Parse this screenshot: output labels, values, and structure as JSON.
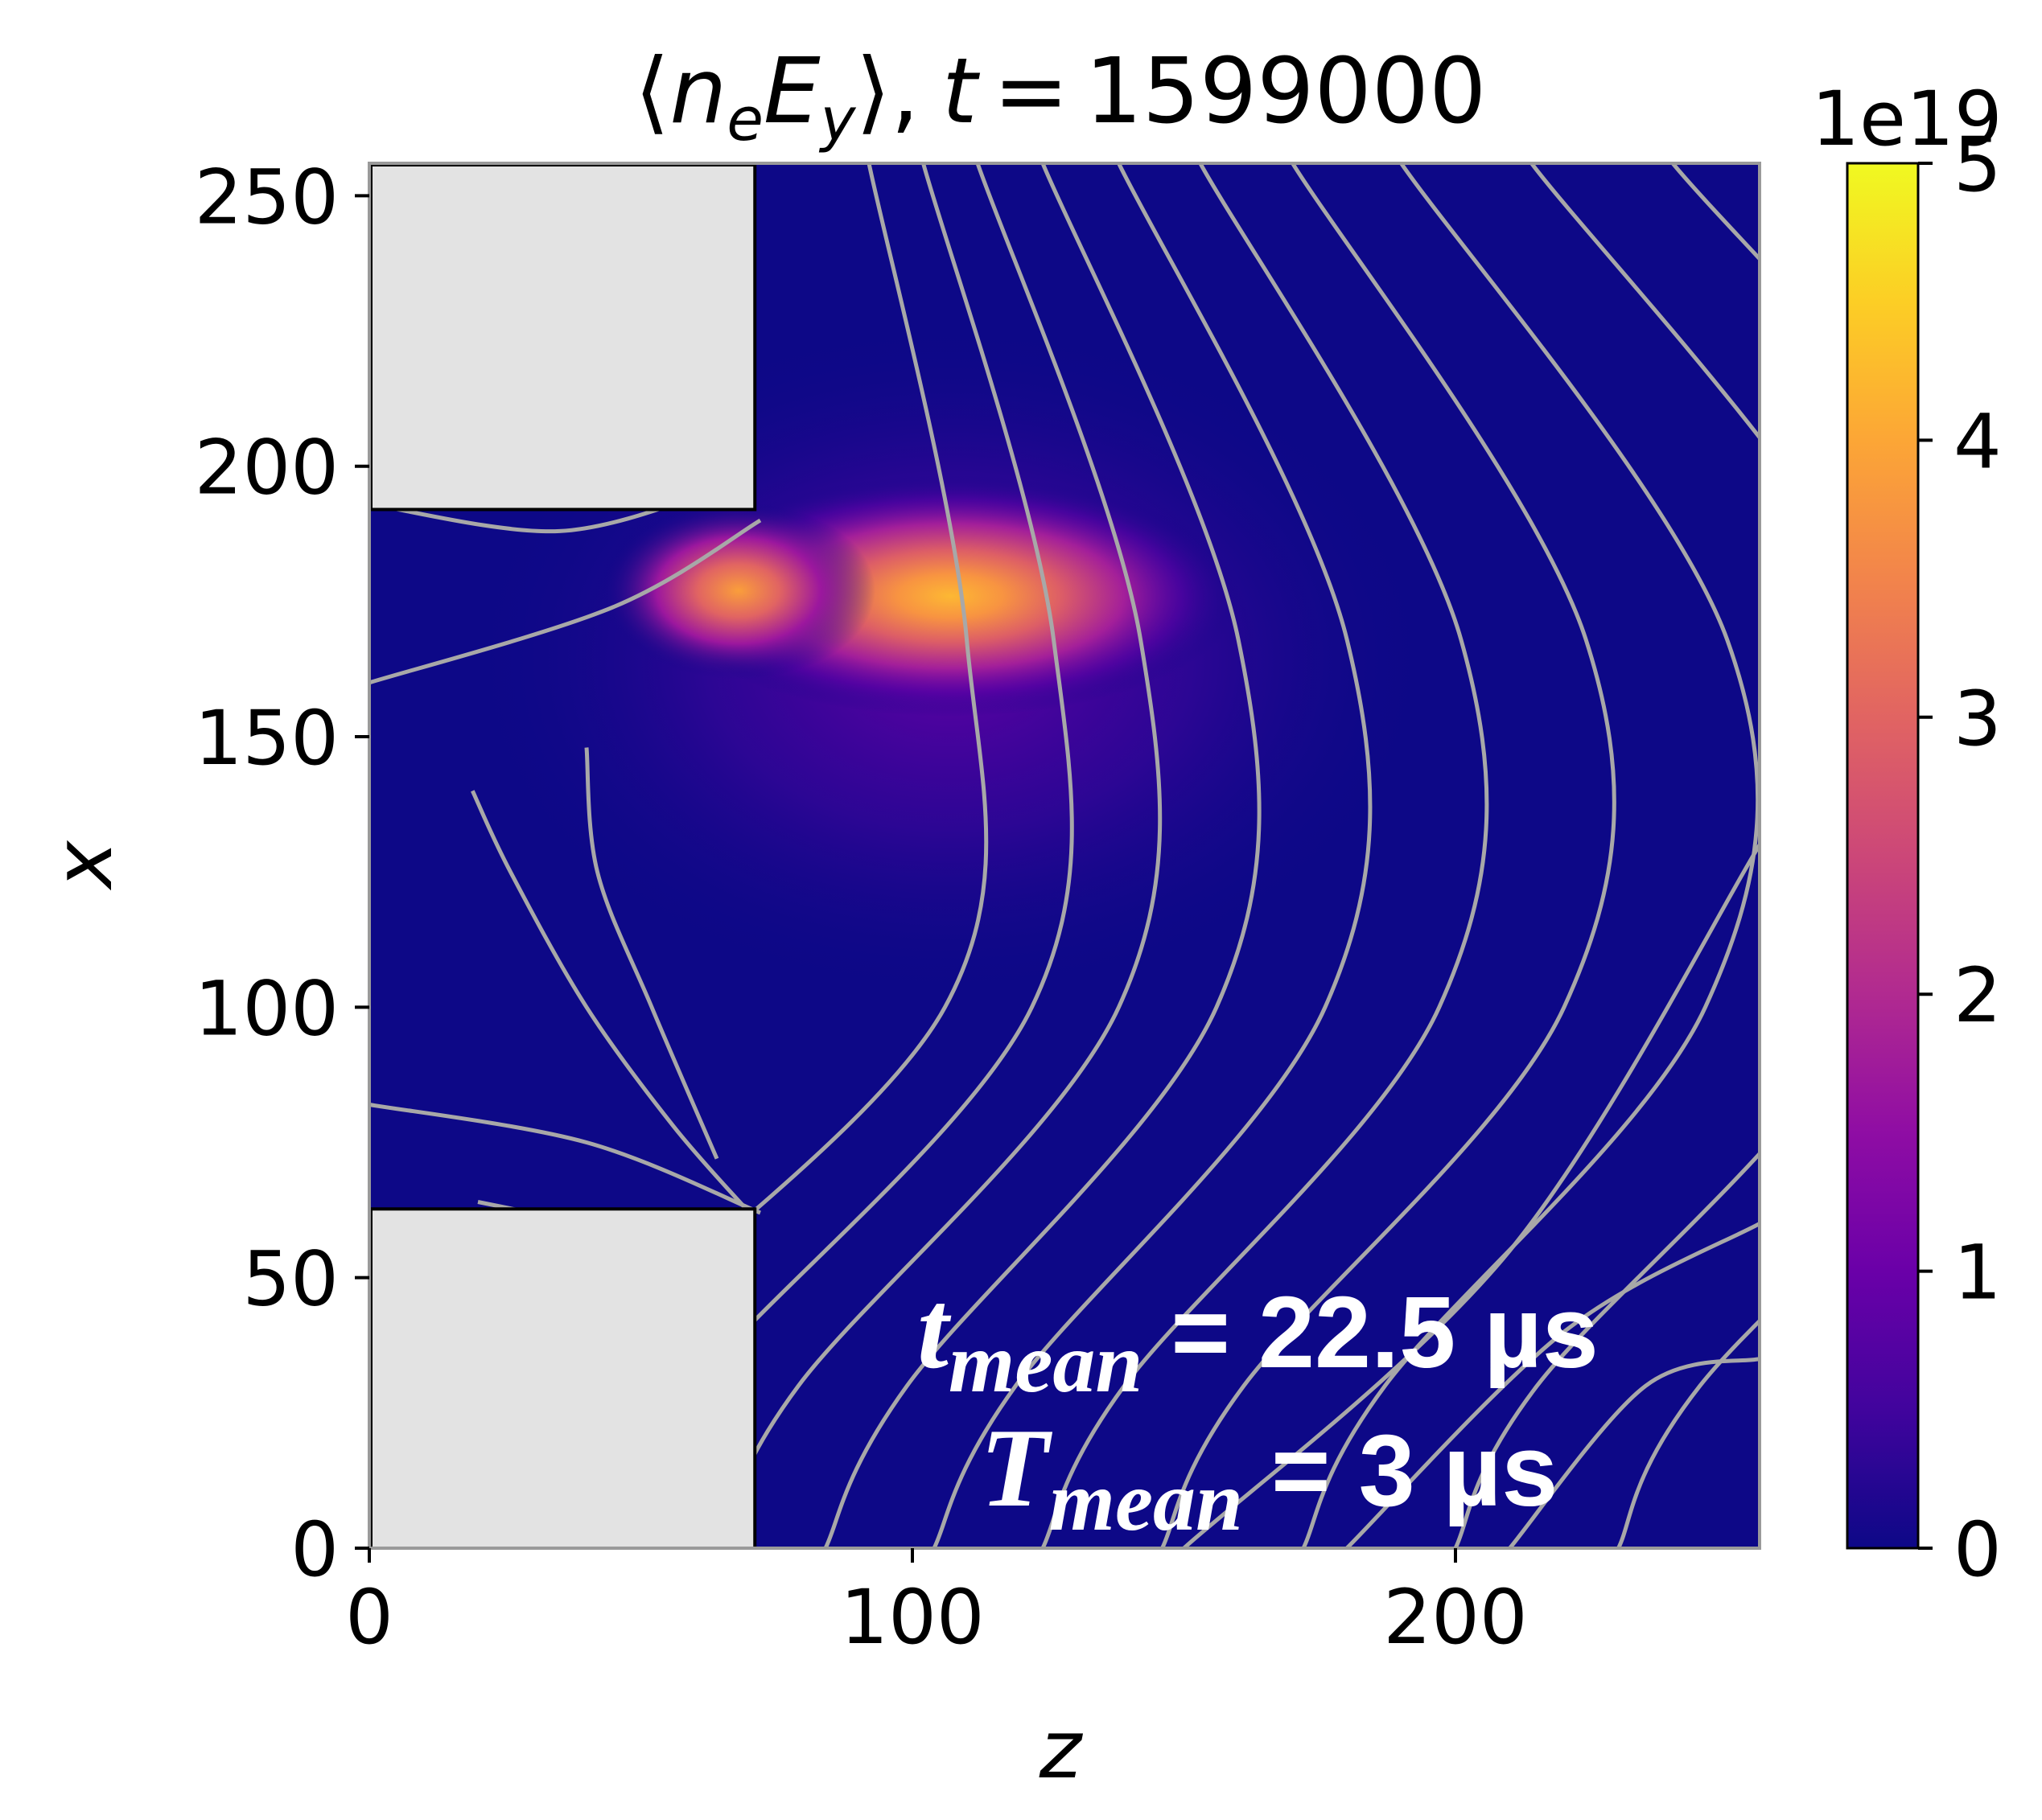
{
  "chart_data": {
    "type": "heatmap",
    "title": {
      "open": "⟨",
      "var_main": "n",
      "var_sub": "e",
      "var2_main": "E",
      "var2_sub": "y",
      "close": "⟩,",
      "time_label": "t",
      "equals": "=",
      "time_value": "1599000"
    },
    "xlabel": "z",
    "ylabel": "x",
    "xlim": [
      0,
      256
    ],
    "ylim": [
      0,
      256
    ],
    "x_ticks": [
      "0",
      "100",
      "200"
    ],
    "x_tick_values": [
      0,
      100,
      200
    ],
    "y_ticks": [
      "0",
      "50",
      "100",
      "150",
      "200",
      "250"
    ],
    "y_tick_values": [
      0,
      50,
      100,
      150,
      200,
      250
    ],
    "colormap": "plasma",
    "colorbar": {
      "min": 0,
      "max": 5,
      "ticks": [
        "0",
        "1",
        "2",
        "3",
        "4",
        "5"
      ],
      "tick_values": [
        0,
        1,
        2,
        3,
        4,
        5
      ],
      "multiplier": "1e19"
    },
    "background_color": "#0d0887",
    "wall_color": "#e3e3e3",
    "contour_color": "#a8a8a8",
    "walls": [
      {
        "z": [
          0,
          71
        ],
        "x": [
          192,
          256
        ]
      },
      {
        "z": [
          0,
          71
        ],
        "x": [
          0,
          63
        ]
      }
    ],
    "hotspots": [
      {
        "z": 107,
        "x": 176,
        "value": 4.6
      },
      {
        "z": 68,
        "x": 177,
        "value": 3.9
      }
    ],
    "annotations": {
      "line1_main": "t",
      "line1_sub": "mean",
      "line1_rest": " = 22.5 µs",
      "line2_main": "T",
      "line2_sub": "mean",
      "line2_rest": " = 3 µs"
    }
  }
}
